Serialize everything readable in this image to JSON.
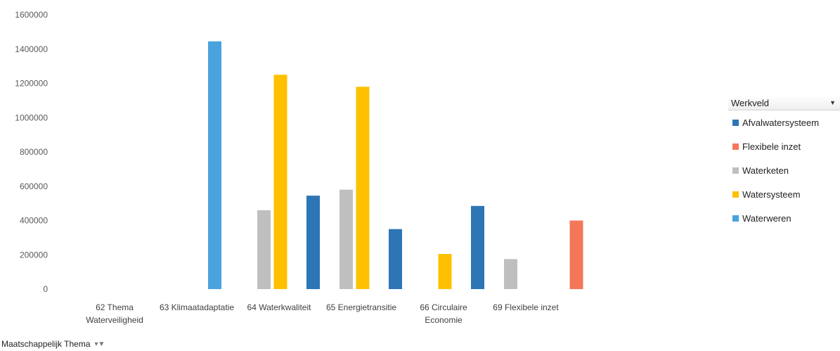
{
  "chart_data": {
    "type": "bar",
    "categories": [
      [
        "62 Thema",
        "Waterveiligheid"
      ],
      [
        "63 Klimaatadaptatie"
      ],
      [
        "64 Waterkwaliteit"
      ],
      [
        "65 Energietransitie"
      ],
      [
        "66 Circulaire",
        "Economie"
      ],
      [
        "69 Flexibele inzet"
      ]
    ],
    "series": [
      {
        "name": "Afvalwatersysteem",
        "color": "#2e75b6",
        "values": [
          0,
          0,
          545000,
          350000,
          485000,
          0
        ]
      },
      {
        "name": "Flexibele inzet",
        "color": "#f4775a",
        "values": [
          0,
          0,
          0,
          0,
          0,
          400000
        ]
      },
      {
        "name": "Waterketen",
        "color": "#bfbfbf",
        "values": [
          0,
          460000,
          580000,
          0,
          175000,
          0
        ]
      },
      {
        "name": "Watersysteem",
        "color": "#ffc000",
        "values": [
          0,
          1250000,
          1180000,
          205000,
          0,
          0
        ]
      },
      {
        "name": "Waterweren",
        "color": "#4aa3df",
        "values": [
          1445000,
          0,
          0,
          0,
          0,
          0
        ]
      }
    ],
    "yticks": [
      "0",
      "200000",
      "400000",
      "600000",
      "800000",
      "1000000",
      "1200000",
      "1400000",
      "1600000"
    ],
    "ylim": [
      0,
      1600000
    ],
    "grid": false,
    "legend_position": "right",
    "legend_title": "Werkveld",
    "axis_field_label": "Maatschappelijk Thema"
  }
}
